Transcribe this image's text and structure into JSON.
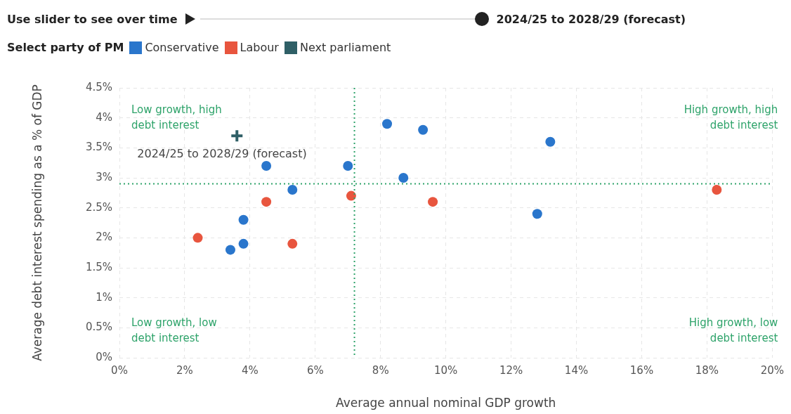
{
  "chart_data": {
    "type": "scatter",
    "xlabel": "Average annual nominal GDP growth",
    "ylabel": "Average debt interest spending as a % of GDP",
    "legend_title": "Select party of PM",
    "legend": "top left",
    "marker": "circle",
    "grid": true,
    "xlim": [
      0,
      20
    ],
    "xticks": [
      {
        "value": 0,
        "label": "0%"
      },
      {
        "value": 2,
        "label": "2%"
      },
      {
        "value": 4,
        "label": "4%"
      },
      {
        "value": 6,
        "label": "6%"
      },
      {
        "value": 8,
        "label": "8%"
      },
      {
        "value": 10,
        "label": "10%"
      },
      {
        "value": 12,
        "label": "12%"
      },
      {
        "value": 14,
        "label": "14%"
      },
      {
        "value": 16,
        "label": "16%"
      },
      {
        "value": 18,
        "label": "18%"
      },
      {
        "value": 20,
        "label": "20%"
      }
    ],
    "ylim": [
      0,
      4.5
    ],
    "yticks": [
      {
        "value": 0,
        "label": "0%"
      },
      {
        "value": 0.5,
        "label": "0.5%"
      },
      {
        "value": 1,
        "label": "1%"
      },
      {
        "value": 1.5,
        "label": "1.5%"
      },
      {
        "value": 2,
        "label": "2%"
      },
      {
        "value": 2.5,
        "label": "2.5%"
      },
      {
        "value": 3,
        "label": "3%"
      },
      {
        "value": 3.5,
        "label": "3.5%"
      },
      {
        "value": 4,
        "label": "4%"
      },
      {
        "value": 4.5,
        "label": "4.5%"
      }
    ],
    "series": [
      {
        "name": "Conservative",
        "color": "#2a76cc",
        "x": [
          4.5,
          3.4,
          3.8,
          3.8,
          5.3,
          7.0,
          8.2,
          9.3,
          8.7,
          13.2,
          12.8
        ],
        "values": [
          3.2,
          1.8,
          1.9,
          2.3,
          2.8,
          3.2,
          3.9,
          3.8,
          3.0,
          3.6,
          2.4
        ]
      },
      {
        "name": "Labour",
        "color": "#e8553e",
        "x": [
          2.4,
          4.5,
          5.3,
          7.1,
          9.6,
          18.3
        ],
        "values": [
          2.0,
          2.6,
          1.9,
          2.7,
          2.6,
          2.8
        ]
      },
      {
        "name": "Next parliament",
        "color": "#2f5f66",
        "marker": "cross",
        "x": [
          3.6
        ],
        "values": [
          3.7
        ]
      }
    ],
    "ref_lines": [
      {
        "axis": "x",
        "value": 7.2,
        "color": "#2ea36a",
        "line_style": "dotted"
      },
      {
        "axis": "y",
        "value": 2.9,
        "color": "#2ea36a",
        "line_style": "dotted"
      }
    ],
    "annotations": [
      "Use slider to see over time",
      "2024/25 to 2028/29 (forecast)",
      {
        "text": "2024/25 to 2028/29 (forecast)",
        "x": 3.6,
        "y": 3.7
      },
      "Low growth, high\ndebt interest",
      "High growth, high\ndebt interest",
      "Low growth, low\ndebt interest",
      "High growth, low\ndebt interest"
    ]
  }
}
